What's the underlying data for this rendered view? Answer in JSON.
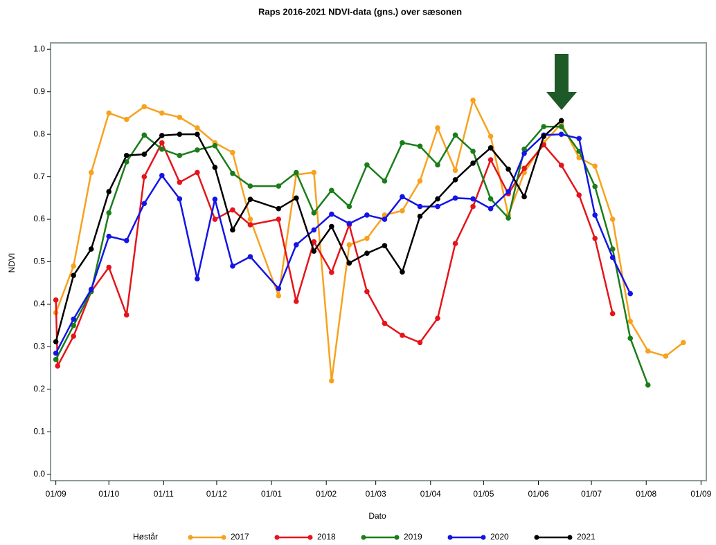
{
  "chart_data": {
    "type": "line",
    "title": "Raps 2016-2021 NDVI-data (gns.) over sæsonen",
    "xlabel": "Dato",
    "ylabel": "NDVI",
    "legend_title": "Høstår",
    "legend_loc": "bottom",
    "xlim": [
      -3,
      368
    ],
    "ylim": [
      -0.015,
      1.015
    ],
    "xticks": [
      {
        "value": 0,
        "label": "01/09"
      },
      {
        "value": 30,
        "label": "01/10"
      },
      {
        "value": 61,
        "label": "01/11"
      },
      {
        "value": 91,
        "label": "01/12"
      },
      {
        "value": 122,
        "label": "01/01"
      },
      {
        "value": 153,
        "label": "01/02"
      },
      {
        "value": 181,
        "label": "01/03"
      },
      {
        "value": 212,
        "label": "01/04"
      },
      {
        "value": 242,
        "label": "01/05"
      },
      {
        "value": 273,
        "label": "01/06"
      },
      {
        "value": 303,
        "label": "01/07"
      },
      {
        "value": 334,
        "label": "01/08"
      },
      {
        "value": 365,
        "label": "01/09"
      }
    ],
    "yticks": [
      {
        "value": 0,
        "label": "0.0"
      },
      0.1,
      0.2,
      0.3,
      0.4,
      0.5,
      0.6,
      0.7,
      0.8,
      0.9,
      {
        "value": 1,
        "label": "1.0"
      }
    ],
    "series": [
      {
        "name": "2017",
        "color": "#f7a21e",
        "x": [
          0,
          10,
          20,
          30,
          40,
          50,
          60,
          70,
          80,
          90,
          100,
          110,
          126,
          136,
          146,
          156,
          166,
          176,
          186,
          196,
          206,
          216,
          226,
          236,
          246,
          256,
          265,
          276,
          286,
          296,
          305,
          315,
          325,
          335,
          345,
          355
        ],
        "values": [
          0.38,
          0.49,
          0.71,
          0.85,
          0.835,
          0.865,
          0.85,
          0.84,
          0.815,
          0.78,
          0.757,
          0.6,
          0.42,
          0.705,
          0.71,
          0.22,
          0.54,
          0.555,
          0.61,
          0.62,
          0.69,
          0.815,
          0.715,
          0.88,
          0.795,
          0.61,
          0.71,
          0.78,
          0.825,
          0.745,
          0.725,
          0.6,
          0.36,
          0.29,
          0.278,
          0.31
        ]
      },
      {
        "name": "2018",
        "color": "#e5141b",
        "x": [
          0,
          1,
          10,
          20,
          30,
          40,
          50,
          60,
          70,
          80,
          90,
          100,
          110,
          126,
          136,
          146,
          156,
          166,
          176,
          186,
          196,
          206,
          216,
          226,
          236,
          246,
          256,
          265,
          276,
          286,
          296,
          305,
          315
        ],
        "values": [
          0.41,
          0.255,
          0.325,
          0.43,
          0.487,
          0.375,
          0.7,
          0.78,
          0.687,
          0.71,
          0.6,
          0.622,
          0.587,
          0.6,
          0.407,
          0.547,
          0.475,
          0.587,
          0.43,
          0.355,
          0.327,
          0.31,
          0.367,
          0.543,
          0.63,
          0.74,
          0.66,
          0.72,
          0.775,
          0.727,
          0.657,
          0.555,
          0.378
        ]
      },
      {
        "name": "2019",
        "color": "#1a7d1a",
        "x": [
          0,
          10,
          20,
          30,
          40,
          50,
          60,
          70,
          80,
          90,
          100,
          110,
          126,
          136,
          146,
          156,
          166,
          176,
          186,
          196,
          206,
          216,
          226,
          236,
          246,
          256,
          265,
          276,
          286,
          296,
          305,
          315,
          325,
          335
        ],
        "values": [
          0.27,
          0.35,
          0.43,
          0.615,
          0.735,
          0.798,
          0.765,
          0.75,
          0.763,
          0.773,
          0.708,
          0.678,
          0.678,
          0.71,
          0.615,
          0.668,
          0.63,
          0.728,
          0.69,
          0.78,
          0.772,
          0.728,
          0.798,
          0.76,
          0.648,
          0.603,
          0.765,
          0.818,
          0.818,
          0.76,
          0.677,
          0.53,
          0.32,
          0.21
        ]
      },
      {
        "name": "2020",
        "color": "#1414e6",
        "x": [
          0,
          10,
          20,
          30,
          40,
          50,
          60,
          70,
          80,
          90,
          100,
          110,
          126,
          136,
          146,
          156,
          166,
          176,
          186,
          196,
          206,
          216,
          226,
          236,
          246,
          256,
          265,
          276,
          286,
          296,
          305,
          315,
          325
        ],
        "values": [
          0.285,
          0.365,
          0.435,
          0.56,
          0.55,
          0.637,
          0.703,
          0.648,
          0.46,
          0.647,
          0.49,
          0.512,
          0.437,
          0.54,
          0.575,
          0.612,
          0.59,
          0.61,
          0.6,
          0.653,
          0.63,
          0.63,
          0.65,
          0.648,
          0.625,
          0.665,
          0.755,
          0.798,
          0.8,
          0.79,
          0.61,
          0.51,
          0.425
        ]
      },
      {
        "name": "2021",
        "color": "#000000",
        "x": [
          0,
          10,
          20,
          30,
          40,
          50,
          60,
          70,
          80,
          90,
          100,
          110,
          126,
          136,
          146,
          156,
          166,
          176,
          186,
          196,
          206,
          216,
          226,
          236,
          246,
          256,
          265,
          276,
          286
        ],
        "values": [
          0.312,
          0.468,
          0.53,
          0.665,
          0.75,
          0.753,
          0.797,
          0.8,
          0.8,
          0.722,
          0.575,
          0.647,
          0.625,
          0.65,
          0.525,
          0.583,
          0.497,
          0.52,
          0.538,
          0.476,
          0.607,
          0.648,
          0.693,
          0.732,
          0.768,
          0.718,
          0.653,
          0.795,
          0.832
        ]
      }
    ]
  }
}
